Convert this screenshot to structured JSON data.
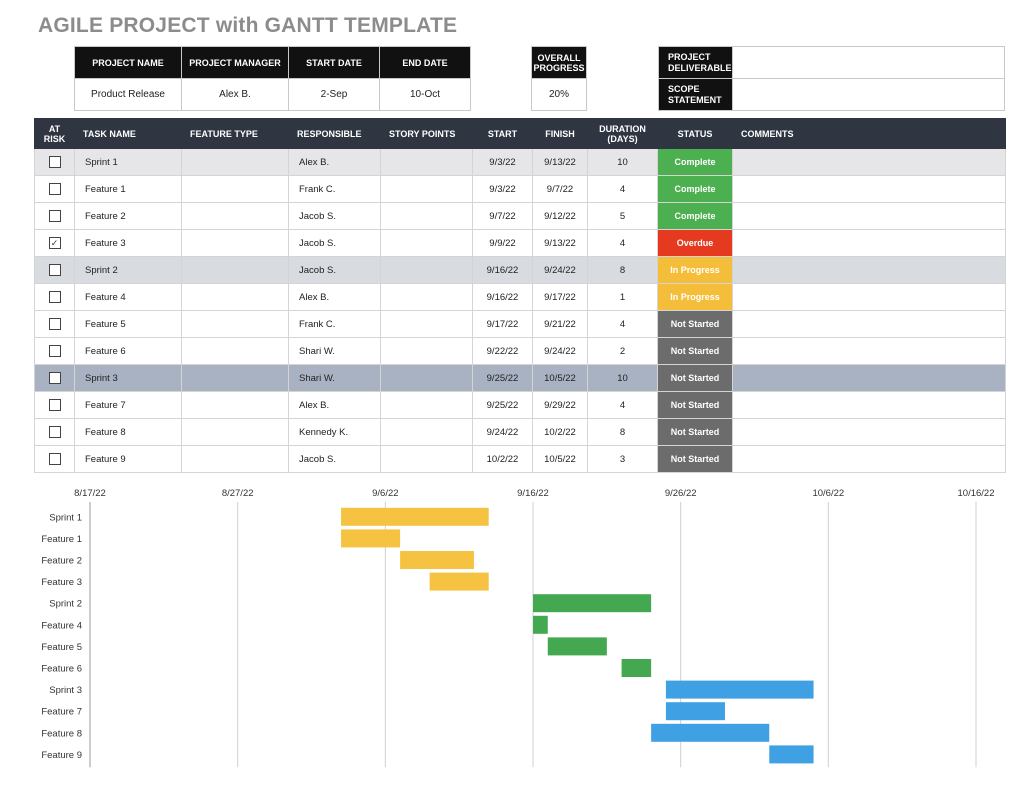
{
  "title": "AGILE PROJECT with GANTT TEMPLATE",
  "project": {
    "headers": [
      "PROJECT NAME",
      "PROJECT MANAGER",
      "START DATE",
      "END DATE"
    ],
    "values": [
      "Product Release",
      "Alex B.",
      "2-Sep",
      "10-Oct"
    ]
  },
  "progress": {
    "header": "OVERALL PROGRESS",
    "value": "20%"
  },
  "deliverable": {
    "deliverable_label": "PROJECT DELIVERABLE",
    "deliverable_value": "",
    "scope_label": "SCOPE STATEMENT",
    "scope_value": ""
  },
  "table": {
    "headers": {
      "at_risk": "AT RISK",
      "task_name": "TASK NAME",
      "feature_type": "FEATURE TYPE",
      "responsible": "RESPONSIBLE",
      "story_points": "STORY POINTS",
      "start": "START",
      "finish": "FINISH",
      "duration": "DURATION (DAYS)",
      "status": "STATUS",
      "comments": "COMMENTS"
    },
    "rows": [
      {
        "at_risk": false,
        "task": "Sprint 1",
        "feature_type": "",
        "responsible": "Alex B.",
        "story_points": "",
        "start": "9/3/22",
        "finish": "9/13/22",
        "duration": "10",
        "status": "Complete",
        "comments": "",
        "sprint": 1
      },
      {
        "at_risk": false,
        "task": "Feature 1",
        "feature_type": "",
        "responsible": "Frank C.",
        "story_points": "",
        "start": "9/3/22",
        "finish": "9/7/22",
        "duration": "4",
        "status": "Complete",
        "comments": "",
        "sprint": 0
      },
      {
        "at_risk": false,
        "task": "Feature 2",
        "feature_type": "",
        "responsible": "Jacob S.",
        "story_points": "",
        "start": "9/7/22",
        "finish": "9/12/22",
        "duration": "5",
        "status": "Complete",
        "comments": "",
        "sprint": 0
      },
      {
        "at_risk": true,
        "task": "Feature 3",
        "feature_type": "",
        "responsible": "Jacob S.",
        "story_points": "",
        "start": "9/9/22",
        "finish": "9/13/22",
        "duration": "4",
        "status": "Overdue",
        "comments": "",
        "sprint": 0
      },
      {
        "at_risk": false,
        "task": "Sprint 2",
        "feature_type": "",
        "responsible": "Jacob S.",
        "story_points": "",
        "start": "9/16/22",
        "finish": "9/24/22",
        "duration": "8",
        "status": "In Progress",
        "comments": "",
        "sprint": 2
      },
      {
        "at_risk": false,
        "task": "Feature 4",
        "feature_type": "",
        "responsible": "Alex B.",
        "story_points": "",
        "start": "9/16/22",
        "finish": "9/17/22",
        "duration": "1",
        "status": "In Progress",
        "comments": "",
        "sprint": 0
      },
      {
        "at_risk": false,
        "task": "Feature 5",
        "feature_type": "",
        "responsible": "Frank C.",
        "story_points": "",
        "start": "9/17/22",
        "finish": "9/21/22",
        "duration": "4",
        "status": "Not Started",
        "comments": "",
        "sprint": 0
      },
      {
        "at_risk": false,
        "task": "Feature 6",
        "feature_type": "",
        "responsible": "Shari W.",
        "story_points": "",
        "start": "9/22/22",
        "finish": "9/24/22",
        "duration": "2",
        "status": "Not Started",
        "comments": "",
        "sprint": 0
      },
      {
        "at_risk": false,
        "task": "Sprint 3",
        "feature_type": "",
        "responsible": "Shari W.",
        "story_points": "",
        "start": "9/25/22",
        "finish": "10/5/22",
        "duration": "10",
        "status": "Not Started",
        "comments": "",
        "sprint": 3
      },
      {
        "at_risk": false,
        "task": "Feature 7",
        "feature_type": "",
        "responsible": "Alex B.",
        "story_points": "",
        "start": "9/25/22",
        "finish": "9/29/22",
        "duration": "4",
        "status": "Not Started",
        "comments": "",
        "sprint": 0
      },
      {
        "at_risk": false,
        "task": "Feature 8",
        "feature_type": "",
        "responsible": "Kennedy K.",
        "story_points": "",
        "start": "9/24/22",
        "finish": "10/2/22",
        "duration": "8",
        "status": "Not Started",
        "comments": "",
        "sprint": 0
      },
      {
        "at_risk": false,
        "task": "Feature 9",
        "feature_type": "",
        "responsible": "Jacob S.",
        "story_points": "",
        "start": "10/2/22",
        "finish": "10/5/22",
        "duration": "3",
        "status": "Not Started",
        "comments": "",
        "sprint": 0
      }
    ]
  },
  "status_colors": {
    "Complete": "#4caf50",
    "Overdue": "#e53a1f",
    "In Progress": "#f5be3a",
    "Not Started": "#6c6c6c"
  },
  "check_glyph": "✓",
  "colors": {
    "header_bg": "#2f3642",
    "bar_sprint1": "#f5c242",
    "bar_sprint2": "#43a84f",
    "bar_sprint3": "#3fa1e3",
    "title": "#8c8c8c"
  },
  "chart_data": {
    "type": "bar",
    "orientation": "horizontal-gantt",
    "x_ticks": [
      "8/17/22",
      "8/27/22",
      "9/6/22",
      "9/16/22",
      "9/26/22",
      "10/6/22",
      "10/16/22"
    ],
    "xlim": [
      "2022-08-17",
      "2022-10-16"
    ],
    "grid": true,
    "tasks": [
      {
        "name": "Sprint 1",
        "start": "2022-09-03",
        "end": "2022-09-13",
        "group": 1
      },
      {
        "name": "Feature 1",
        "start": "2022-09-03",
        "end": "2022-09-07",
        "group": 1
      },
      {
        "name": "Feature 2",
        "start": "2022-09-07",
        "end": "2022-09-12",
        "group": 1
      },
      {
        "name": "Feature 3",
        "start": "2022-09-09",
        "end": "2022-09-13",
        "group": 1
      },
      {
        "name": "Sprint 2",
        "start": "2022-09-16",
        "end": "2022-09-24",
        "group": 2
      },
      {
        "name": "Feature 4",
        "start": "2022-09-16",
        "end": "2022-09-17",
        "group": 2
      },
      {
        "name": "Feature 5",
        "start": "2022-09-17",
        "end": "2022-09-21",
        "group": 2
      },
      {
        "name": "Feature 6",
        "start": "2022-09-22",
        "end": "2022-09-24",
        "group": 2
      },
      {
        "name": "Sprint 3",
        "start": "2022-09-25",
        "end": "2022-10-05",
        "group": 3
      },
      {
        "name": "Feature 7",
        "start": "2022-09-25",
        "end": "2022-09-29",
        "group": 3
      },
      {
        "name": "Feature 8",
        "start": "2022-09-24",
        "end": "2022-10-02",
        "group": 3
      },
      {
        "name": "Feature 9",
        "start": "2022-10-02",
        "end": "2022-10-05",
        "group": 3
      }
    ]
  }
}
